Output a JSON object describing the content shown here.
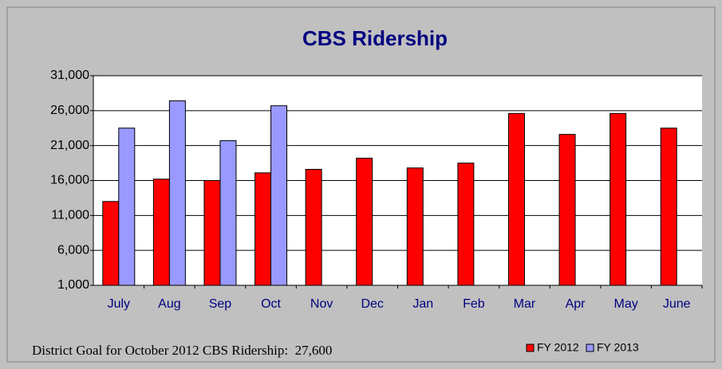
{
  "chart_data": {
    "type": "bar",
    "title": "CBS Ridership",
    "categories": [
      "July",
      "Aug",
      "Sep",
      "Oct",
      "Nov",
      "Dec",
      "Jan",
      "Feb",
      "Mar",
      "Apr",
      "May",
      "June"
    ],
    "series": [
      {
        "name": "FY 2012",
        "color": "#ff0000",
        "values": [
          13000,
          16200,
          16000,
          17100,
          17600,
          19200,
          17800,
          18500,
          25600,
          22600,
          25600,
          23500
        ]
      },
      {
        "name": "FY 2013",
        "color": "#9999ff",
        "values": [
          23500,
          27400,
          21700,
          26700,
          null,
          null,
          null,
          null,
          null,
          null,
          null,
          null
        ]
      }
    ],
    "ylim": [
      1000,
      31000
    ],
    "yticks": [
      {
        "value": 1000,
        "label": "1,000"
      },
      {
        "value": 6000,
        "label": "6,000"
      },
      {
        "value": 11000,
        "label": "11,000"
      },
      {
        "value": 16000,
        "label": "16,000"
      },
      {
        "value": 21000,
        "label": "21,000"
      },
      {
        "value": 26000,
        "label": "26,000"
      },
      {
        "value": 31000,
        "label": "31,000"
      }
    ],
    "grid": true,
    "legend": "lower right",
    "annotation": "District Goal for October 2012 CBS Ridership:  27,600"
  }
}
